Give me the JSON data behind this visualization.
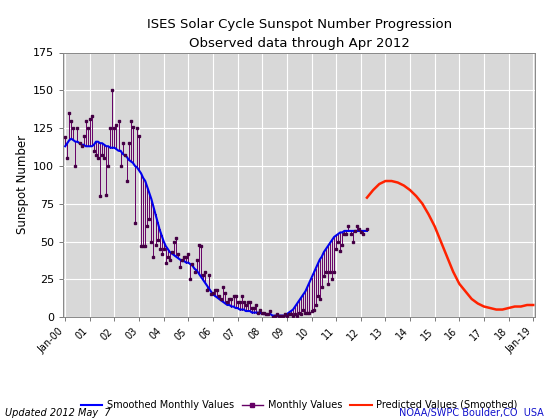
{
  "title": "ISES Solar Cycle Sunspot Number Progression",
  "subtitle": "Observed data through Apr 2012",
  "ylabel": "Sunspot Number",
  "footer_left": "Updated 2012 May  7",
  "footer_right": "NOAA/SWPC Boulder,CO  USA",
  "ylim": [
    0,
    175
  ],
  "legend_labels": [
    "Smoothed Monthly Values",
    "Monthly Values",
    "Predicted Values (Smoothed)"
  ],
  "legend_colors": [
    "#0000ff",
    "#660066",
    "#ff2200"
  ],
  "smoothed_x": [
    2000.0,
    2000.083,
    2000.167,
    2000.25,
    2000.333,
    2000.417,
    2000.5,
    2000.583,
    2000.667,
    2000.75,
    2000.833,
    2000.917,
    2001.0,
    2001.083,
    2001.167,
    2001.25,
    2001.333,
    2001.417,
    2001.5,
    2001.583,
    2001.667,
    2001.75,
    2001.833,
    2001.917,
    2002.0,
    2002.083,
    2002.167,
    2002.25,
    2002.333,
    2002.417,
    2002.5,
    2002.583,
    2002.667,
    2002.75,
    2002.833,
    2002.917,
    2003.0,
    2003.083,
    2003.167,
    2003.25,
    2003.333,
    2003.417,
    2003.5,
    2003.583,
    2003.667,
    2003.75,
    2003.833,
    2003.917,
    2004.0,
    2004.083,
    2004.167,
    2004.25,
    2004.333,
    2004.417,
    2004.5,
    2004.583,
    2004.667,
    2004.75,
    2004.833,
    2004.917,
    2005.0,
    2005.083,
    2005.167,
    2005.25,
    2005.333,
    2005.417,
    2005.5,
    2005.583,
    2005.667,
    2005.75,
    2005.833,
    2005.917,
    2006.0,
    2006.083,
    2006.167,
    2006.25,
    2006.333,
    2006.417,
    2006.5,
    2006.583,
    2006.667,
    2006.75,
    2006.833,
    2006.917,
    2007.0,
    2007.083,
    2007.167,
    2007.25,
    2007.333,
    2007.417,
    2007.5,
    2007.583,
    2007.667,
    2007.75,
    2007.833,
    2007.917,
    2008.0,
    2008.083,
    2008.167,
    2008.25,
    2008.333,
    2008.417,
    2008.5,
    2008.583,
    2008.667,
    2008.75,
    2008.833,
    2008.917,
    2009.0,
    2009.083,
    2009.167,
    2009.25,
    2009.333,
    2009.417,
    2009.5,
    2009.583,
    2009.667,
    2009.75,
    2009.833,
    2009.917,
    2010.0,
    2010.083,
    2010.167,
    2010.25,
    2010.333,
    2010.417,
    2010.5,
    2010.583,
    2010.667,
    2010.75,
    2010.833,
    2010.917,
    2011.0,
    2011.083,
    2011.167,
    2011.25,
    2011.333,
    2011.417,
    2011.5,
    2011.583,
    2011.667,
    2011.75,
    2011.833,
    2011.917,
    2012.0,
    2012.083,
    2012.25
  ],
  "smoothed_y": [
    113,
    115,
    117,
    118,
    117,
    116,
    116,
    115,
    114,
    114,
    113,
    113,
    113,
    113,
    114,
    116,
    116,
    115,
    115,
    114,
    113,
    113,
    112,
    112,
    112,
    111,
    110,
    110,
    108,
    107,
    106,
    104,
    103,
    102,
    100,
    99,
    97,
    95,
    92,
    90,
    86,
    82,
    78,
    73,
    68,
    63,
    58,
    54,
    50,
    47,
    45,
    43,
    42,
    41,
    40,
    39,
    38,
    37,
    37,
    36,
    36,
    35,
    34,
    32,
    31,
    29,
    27,
    25,
    23,
    21,
    19,
    17,
    15,
    14,
    13,
    12,
    11,
    10,
    9,
    8,
    8,
    7,
    7,
    6,
    6,
    5,
    5,
    5,
    4,
    4,
    4,
    3,
    3,
    3,
    3,
    3,
    2,
    2,
    2,
    2,
    2,
    1,
    1,
    1,
    1,
    1,
    1,
    1,
    2,
    3,
    4,
    5,
    7,
    9,
    11,
    13,
    15,
    17,
    20,
    23,
    26,
    29,
    32,
    35,
    38,
    40,
    43,
    45,
    47,
    49,
    51,
    53,
    54,
    55,
    56,
    56,
    57,
    57,
    57,
    57,
    57,
    57,
    57,
    57,
    57,
    57,
    57
  ],
  "monthly_x": [
    2000.0,
    2000.083,
    2000.167,
    2000.25,
    2000.333,
    2000.417,
    2000.5,
    2000.583,
    2000.667,
    2000.75,
    2000.833,
    2000.917,
    2001.0,
    2001.083,
    2001.167,
    2001.25,
    2001.333,
    2001.417,
    2001.5,
    2001.583,
    2001.667,
    2001.75,
    2001.833,
    2001.917,
    2002.0,
    2002.083,
    2002.167,
    2002.25,
    2002.333,
    2002.417,
    2002.5,
    2002.583,
    2002.667,
    2002.75,
    2002.833,
    2002.917,
    2003.0,
    2003.083,
    2003.167,
    2003.25,
    2003.333,
    2003.417,
    2003.5,
    2003.583,
    2003.667,
    2003.75,
    2003.833,
    2003.917,
    2004.0,
    2004.083,
    2004.167,
    2004.25,
    2004.333,
    2004.417,
    2004.5,
    2004.583,
    2004.667,
    2004.75,
    2004.833,
    2004.917,
    2005.0,
    2005.083,
    2005.167,
    2005.25,
    2005.333,
    2005.417,
    2005.5,
    2005.583,
    2005.667,
    2005.75,
    2005.833,
    2005.917,
    2006.0,
    2006.083,
    2006.167,
    2006.25,
    2006.333,
    2006.417,
    2006.5,
    2006.583,
    2006.667,
    2006.75,
    2006.833,
    2006.917,
    2007.0,
    2007.083,
    2007.167,
    2007.25,
    2007.333,
    2007.417,
    2007.5,
    2007.583,
    2007.667,
    2007.75,
    2007.833,
    2007.917,
    2008.0,
    2008.083,
    2008.167,
    2008.25,
    2008.333,
    2008.417,
    2008.5,
    2008.583,
    2008.667,
    2008.75,
    2008.833,
    2008.917,
    2009.0,
    2009.083,
    2009.167,
    2009.25,
    2009.333,
    2009.417,
    2009.5,
    2009.583,
    2009.667,
    2009.75,
    2009.833,
    2009.917,
    2010.0,
    2010.083,
    2010.167,
    2010.25,
    2010.333,
    2010.417,
    2010.5,
    2010.583,
    2010.667,
    2010.75,
    2010.833,
    2010.917,
    2011.0,
    2011.083,
    2011.167,
    2011.25,
    2011.333,
    2011.417,
    2011.5,
    2011.583,
    2011.667,
    2011.75,
    2011.833,
    2011.917,
    2012.0,
    2012.083,
    2012.25
  ],
  "monthly_y": [
    119,
    105,
    135,
    130,
    125,
    100,
    125,
    115,
    113,
    120,
    130,
    125,
    131,
    133,
    110,
    107,
    105,
    80,
    107,
    105,
    81,
    100,
    125,
    150,
    125,
    127,
    130,
    100,
    115,
    107,
    90,
    115,
    130,
    126,
    62,
    125,
    120,
    47,
    47,
    47,
    60,
    65,
    50,
    40,
    48,
    51,
    45,
    42,
    45,
    36,
    40,
    38,
    43,
    50,
    52,
    42,
    33,
    38,
    40,
    40,
    42,
    25,
    35,
    30,
    38,
    48,
    47,
    28,
    30,
    18,
    28,
    15,
    16,
    18,
    18,
    14,
    12,
    20,
    16,
    10,
    12,
    12,
    14,
    14,
    10,
    10,
    14,
    10,
    8,
    10,
    10,
    6,
    6,
    8,
    3,
    5,
    3,
    3,
    2,
    2,
    4,
    0,
    1,
    2,
    1,
    1,
    1,
    2,
    1,
    2,
    2,
    1,
    2,
    1,
    3,
    2,
    5,
    3,
    3,
    3,
    4,
    5,
    8,
    14,
    12,
    20,
    27,
    30,
    22,
    30,
    25,
    30,
    45,
    50,
    44,
    48,
    55,
    55,
    60,
    55,
    50,
    57,
    60,
    58,
    56,
    55,
    58
  ],
  "predicted_x": [
    2012.25,
    2012.5,
    2012.75,
    2013.0,
    2013.25,
    2013.5,
    2013.75,
    2014.0,
    2014.25,
    2014.5,
    2014.75,
    2015.0,
    2015.25,
    2015.5,
    2015.75,
    2016.0,
    2016.25,
    2016.5,
    2016.75,
    2017.0,
    2017.25,
    2017.5,
    2017.75,
    2018.0,
    2018.25,
    2018.5,
    2018.75,
    2019.0
  ],
  "predicted_y": [
    79,
    84,
    88,
    90,
    90,
    89,
    87,
    84,
    80,
    75,
    68,
    60,
    50,
    40,
    30,
    22,
    17,
    12,
    9,
    7,
    6,
    5,
    5,
    6,
    7,
    7,
    8,
    8
  ],
  "x_tick_positions": [
    2000.0,
    2001.0,
    2002.0,
    2003.0,
    2004.0,
    2005.0,
    2006.0,
    2007.0,
    2008.0,
    2009.0,
    2010.0,
    2011.0,
    2012.0,
    2013.0,
    2014.0,
    2015.0,
    2016.0,
    2017.0,
    2018.0,
    2019.0
  ],
  "x_tick_labels": [
    "Jan-00",
    "01",
    "02",
    "03",
    "04",
    "05",
    "06",
    "07",
    "08",
    "09",
    "10",
    "11",
    "12",
    "13",
    "14",
    "15",
    "16",
    "17",
    "18",
    "Jan-19"
  ],
  "y_tick_positions": [
    0,
    25,
    50,
    75,
    100,
    125,
    150,
    175
  ],
  "xlim": [
    1999.917,
    2019.083
  ]
}
